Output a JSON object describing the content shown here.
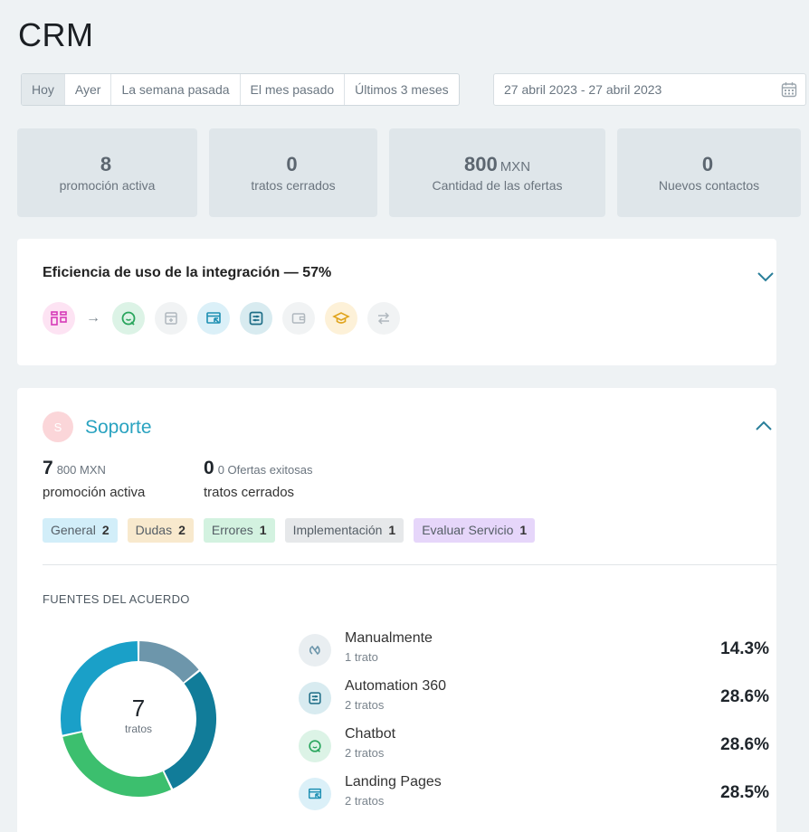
{
  "page": {
    "title": "CRM"
  },
  "range_tabs": [
    {
      "label": "Hoy",
      "active": true
    },
    {
      "label": "Ayer",
      "active": false
    },
    {
      "label": "La semana pasada",
      "active": false
    },
    {
      "label": "El mes pasado",
      "active": false
    },
    {
      "label": "Últimos 3 meses",
      "active": false
    }
  ],
  "date_range": {
    "value": "27 abril 2023 - 27 abril 2023",
    "icon": "calendar-icon"
  },
  "stats": [
    {
      "value": "8",
      "unit": "",
      "label": "promoción activa"
    },
    {
      "value": "0",
      "unit": "",
      "label": "tratos cerrados"
    },
    {
      "value": "800",
      "unit": "MXN",
      "label": "Cantidad de las ofertas"
    },
    {
      "value": "0",
      "unit": "",
      "label": "Nuevos contactos"
    }
  ],
  "efficiency": {
    "title": "Eficiencia de uso de la integración — 57%",
    "icons": [
      {
        "name": "crm-icon",
        "bg": "#fde3f3",
        "color": "#d63ab8"
      },
      {
        "name": "chatbot-icon",
        "bg": "#dcf3e6",
        "color": "#28a55c"
      },
      {
        "name": "form-icon",
        "bg": "#f1f3f4",
        "color": "#b0b8be"
      },
      {
        "name": "landing-pages-icon",
        "bg": "#dbf0f8",
        "color": "#1d8fb3"
      },
      {
        "name": "automation-icon",
        "bg": "#d8ebf0",
        "color": "#1e6e87"
      },
      {
        "name": "wallet-icon",
        "bg": "#f1f3f4",
        "color": "#b0b8be"
      },
      {
        "name": "graduation-cap-icon",
        "bg": "#fdf1d8",
        "color": "#e0a41c"
      },
      {
        "name": "transfer-icon",
        "bg": "#f1f3f4",
        "color": "#b0b8be"
      }
    ]
  },
  "support": {
    "avatar_letter": "S",
    "title": "Soporte",
    "metric1": {
      "big": "7",
      "small": "800 MXN",
      "desc": "promoción activa"
    },
    "metric2": {
      "big": "0",
      "small": "0 Ofertas exitosas",
      "desc": "tratos cerrados"
    },
    "tags": [
      {
        "label": "General",
        "count": "2",
        "bg": "#d2eef9"
      },
      {
        "label": "Dudas",
        "count": "2",
        "bg": "#f8e9cd"
      },
      {
        "label": "Errores",
        "count": "1",
        "bg": "#d3f2e0"
      },
      {
        "label": "Implementación",
        "count": "1",
        "bg": "#e6e8ea"
      },
      {
        "label": "Evaluar Servicio",
        "count": "1",
        "bg": "#e6d6fa"
      }
    ],
    "sources_title": "FUENTES DEL ACUERDO",
    "donut": {
      "total": "7",
      "unit": "tratos"
    },
    "sources": [
      {
        "name": "Manualmente",
        "count_label": "1 trato",
        "percent": "14.3%",
        "value": 14.3,
        "color": "#6d96ab",
        "icon": "hand-icon",
        "icon_bg": "#e9eef1",
        "icon_color": "#6d96ab"
      },
      {
        "name": "Automation 360",
        "count_label": "2 tratos",
        "percent": "28.6%",
        "value": 28.6,
        "color": "#117c99",
        "icon": "automation-icon",
        "icon_bg": "#d8ebf0",
        "icon_color": "#1e6e87"
      },
      {
        "name": "Chatbot",
        "count_label": "2 tratos",
        "percent": "28.6%",
        "value": 28.6,
        "color": "#3cbf6e",
        "icon": "chatbot-icon",
        "icon_bg": "#dcf3e6",
        "icon_color": "#28a55c"
      },
      {
        "name": "Landing Pages",
        "count_label": "2 tratos",
        "percent": "28.5%",
        "value": 28.5,
        "color": "#1aa0c8",
        "icon": "landing-pages-icon",
        "icon_bg": "#dbf0f8",
        "icon_color": "#1d8fb3"
      }
    ]
  }
}
